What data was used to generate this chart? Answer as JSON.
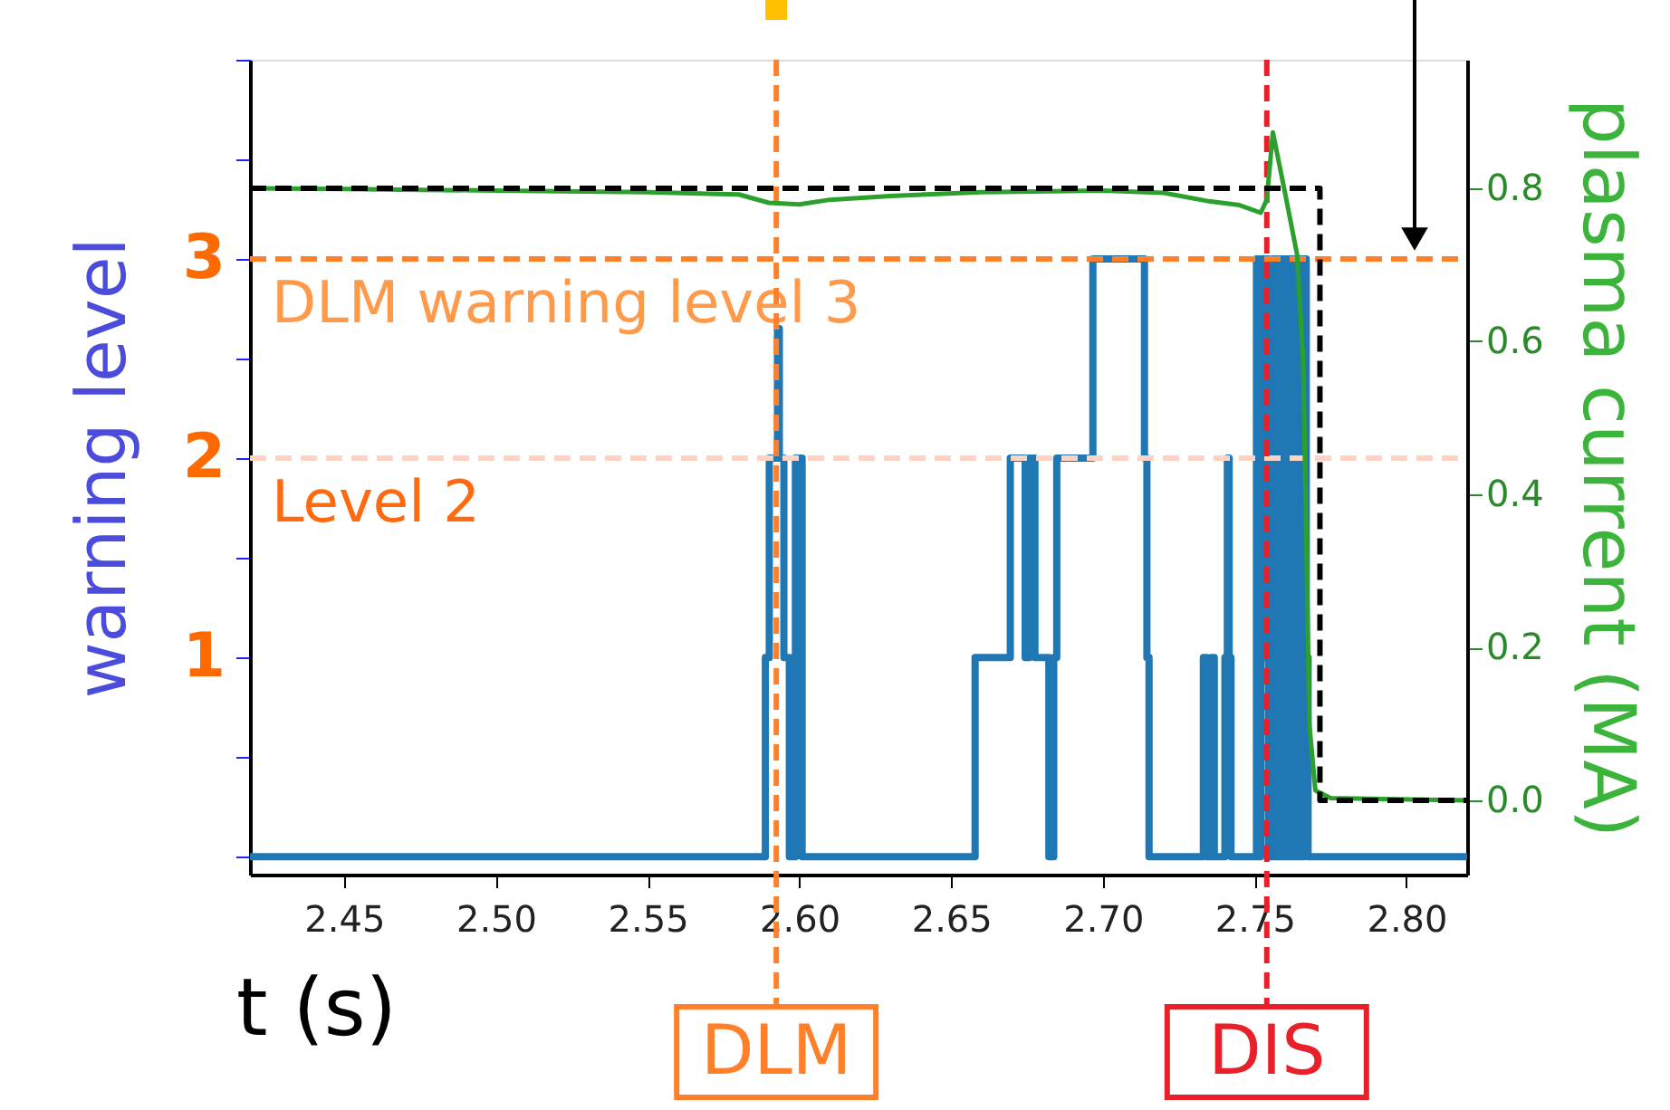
{
  "chart_data": {
    "type": "line",
    "xlabel": "t (s)",
    "ylabel": "warning level",
    "y2label": "plasma current (MA)",
    "xlim": [
      2.419,
      2.82
    ],
    "xticks": [
      2.45,
      {
        "value": 2.5,
        "label": "2.50"
      },
      2.55,
      {
        "value": 2.6,
        "label": "2.60"
      },
      2.65,
      {
        "value": 2.7,
        "label": "2.70"
      },
      2.75,
      {
        "value": 2.8,
        "label": "2.80"
      }
    ],
    "ylim": [
      -0.09,
      4
    ],
    "yticks": [
      {
        "value": 0,
        "label": null
      },
      {
        "value": 0.5,
        "label": null
      },
      1,
      {
        "value": 1.5,
        "label": null
      },
      2,
      {
        "value": 2.5,
        "label": null
      },
      3,
      {
        "value": 3.5,
        "label": null
      },
      {
        "value": 4,
        "label": null
      }
    ],
    "y2lim": [
      -0.097,
      0.968
    ],
    "y2ticks": [
      {
        "value": 0,
        "label": "0.0"
      },
      0.2,
      0.4,
      0.6,
      0.8
    ],
    "series": [
      {
        "type": "step",
        "color": "#1f77b4",
        "x": [
          2.419,
          2.5888,
          2.5901,
          2.5928,
          2.5934,
          2.5949,
          2.5967,
          2.5987,
          2.6009,
          2.6579,
          2.6695,
          2.6744,
          2.6758,
          2.6776,
          2.6822,
          2.6838,
          2.6848,
          2.6967,
          2.7137,
          2.7145,
          2.7152,
          2.7331,
          2.7343,
          2.7357,
          2.7367,
          2.7402,
          2.741,
          2.7416,
          2.7422,
          2.7506,
          2.7512,
          2.752,
          2.753,
          2.7538,
          2.7545,
          2.756,
          2.7566,
          2.7575,
          2.758,
          2.759,
          2.7596,
          2.7605,
          2.7612,
          2.762,
          2.7628,
          2.7636,
          2.7644,
          2.765,
          2.7656,
          2.7664,
          2.767,
          2.7676,
          2.82
        ],
        "values": [
          0,
          1,
          2,
          2.65,
          2,
          1,
          0,
          2,
          0,
          1,
          2,
          1,
          2,
          1,
          0,
          1,
          2,
          3,
          2,
          1,
          0,
          1,
          0,
          1,
          0,
          1,
          2,
          1,
          0,
          3,
          0,
          3,
          1,
          3,
          0,
          3,
          0,
          3,
          0,
          3,
          0,
          3,
          0,
          3,
          0,
          3,
          0,
          3,
          0,
          3,
          1,
          0,
          0
        ]
      },
      {
        "type": "line",
        "axis": "y2",
        "color": "#2ca02c",
        "x": [
          2.419,
          2.45,
          2.5,
          2.55,
          2.58,
          2.59,
          2.6,
          2.61,
          2.63,
          2.66,
          2.7,
          2.72,
          2.735,
          2.745,
          2.752,
          2.754,
          2.756,
          2.76,
          2.764,
          2.766,
          2.767,
          2.768,
          2.77,
          2.775,
          2.82
        ],
        "values": [
          0.8,
          0.799,
          0.797,
          0.795,
          0.792,
          0.781,
          0.779,
          0.785,
          0.79,
          0.795,
          0.797,
          0.794,
          0.783,
          0.778,
          0.768,
          0.785,
          0.873,
          0.794,
          0.713,
          0.571,
          0.35,
          0.1,
          0.013,
          0.003,
          0.0
        ]
      },
      {
        "type": "line",
        "axis": "y2",
        "color": "#000000",
        "line_style": "dashed",
        "x": [
          2.419,
          2.7715,
          2.7715,
          2.82
        ],
        "values": [
          0.8,
          0.8,
          0.0,
          0.0
        ]
      }
    ],
    "ref_lines": [
      {
        "axis": "y",
        "value": 3,
        "label": "DLM warning level 3",
        "color": "#ff7f2a",
        "line_style": "dashed"
      },
      {
        "axis": "y",
        "value": 2,
        "label": "Level 2",
        "color": "#ffd3c4",
        "line_style": "dashed"
      },
      {
        "axis": "x",
        "value": 2.5924,
        "label": "DLM",
        "color": "#ff7f2a",
        "line_style": "dashed"
      },
      {
        "axis": "x",
        "value": 2.754,
        "label": "DIS",
        "color": "#e8202a",
        "line_style": "dashed"
      }
    ],
    "grid": false
  }
}
